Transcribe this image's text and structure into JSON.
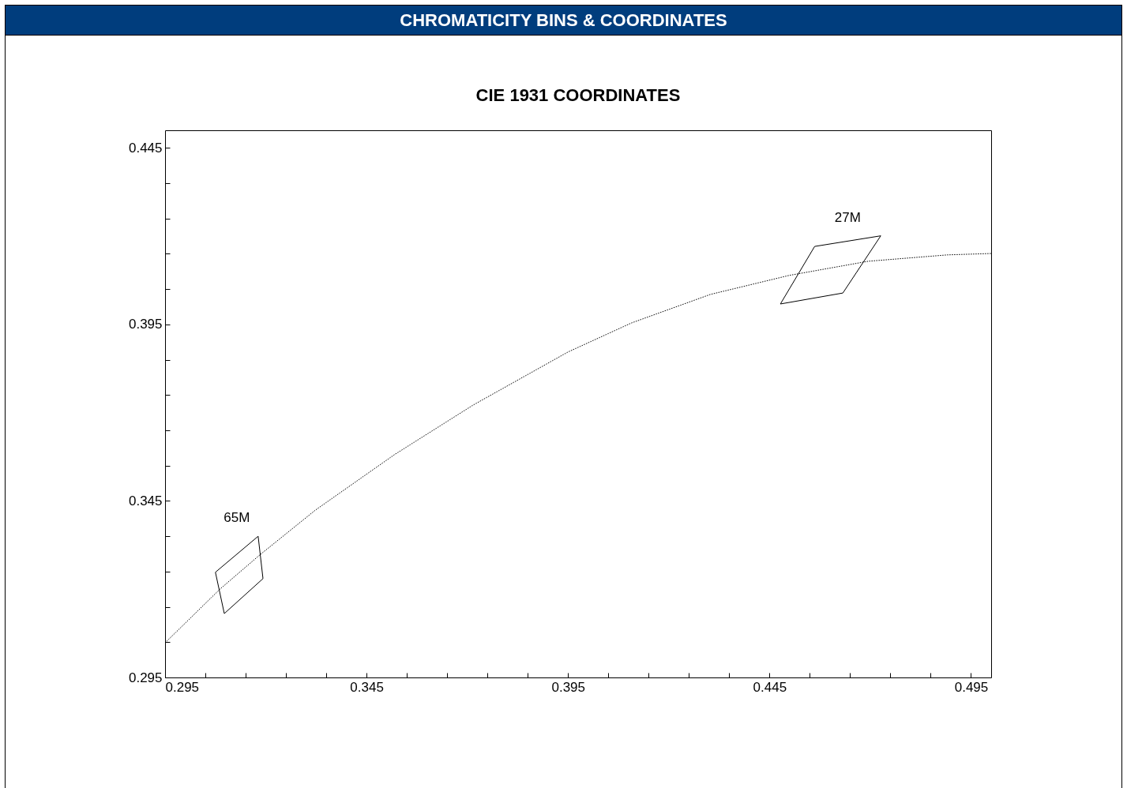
{
  "chart_data": {
    "type": "line",
    "title": "CHROMATICITY BINS & COORDINATES",
    "subtitle": "CIE 1931 COORDINATES",
    "xlim": [
      0.295,
      0.5
    ],
    "ylim": [
      0.295,
      0.45
    ],
    "xticks": [
      0.295,
      {
        "value": 0.305,
        "label": null
      },
      {
        "value": 0.315,
        "label": null
      },
      {
        "value": 0.325,
        "label": null
      },
      {
        "value": 0.335,
        "label": null
      },
      0.345,
      {
        "value": 0.355,
        "label": null
      },
      {
        "value": 0.365,
        "label": null
      },
      {
        "value": 0.375,
        "label": null
      },
      {
        "value": 0.385,
        "label": null
      },
      0.395,
      {
        "value": 0.405,
        "label": null
      },
      {
        "value": 0.415,
        "label": null
      },
      {
        "value": 0.425,
        "label": null
      },
      {
        "value": 0.435,
        "label": null
      },
      0.445,
      {
        "value": 0.455,
        "label": null
      },
      {
        "value": 0.465,
        "label": null
      },
      {
        "value": 0.475,
        "label": null
      },
      {
        "value": 0.485,
        "label": null
      },
      0.495
    ],
    "yticks": [
      0.295,
      {
        "value": 0.305,
        "label": null
      },
      {
        "value": 0.315,
        "label": null
      },
      {
        "value": 0.325,
        "label": null
      },
      {
        "value": 0.335,
        "label": null
      },
      0.345,
      {
        "value": 0.355,
        "label": null
      },
      {
        "value": 0.365,
        "label": null
      },
      {
        "value": 0.375,
        "label": null
      },
      {
        "value": 0.385,
        "label": null
      },
      0.395,
      {
        "value": 0.405,
        "label": null
      },
      {
        "value": 0.415,
        "label": null
      },
      {
        "value": 0.425,
        "label": null
      },
      {
        "value": 0.435,
        "label": null
      },
      0.445
    ],
    "grid": false,
    "legend": false,
    "marker": "none",
    "series": [
      {
        "color": "#000000",
        "line_style": "dotted",
        "x": [
          0.295,
          0.3087,
          0.3185,
          0.3323,
          0.3519,
          0.3715,
          0.395,
          0.4107,
          0.4303,
          0.4499,
          0.4695,
          0.4891,
          0.5
        ],
        "values": [
          0.3048,
          0.3201,
          0.3297,
          0.3424,
          0.3581,
          0.3722,
          0.3872,
          0.3954,
          0.4035,
          0.4089,
          0.4129,
          0.4147,
          0.4151
        ]
      },
      {
        "name": "65M",
        "color": "#000000",
        "line_style": "solid",
        "x": [
          0.3075,
          0.3181,
          0.3193
        ],
        "values": [
          0.3248,
          0.335,
          0.323
        ]
      },
      {
        "color": "#000000",
        "line_style": "solid",
        "x": [
          0.3075,
          0.3097,
          0.3193
        ],
        "values": [
          0.3248,
          0.3131,
          0.323
        ]
      },
      {
        "name": "27M",
        "color": "#000000",
        "line_style": "solid",
        "x": [
          0.4477,
          0.4562,
          0.4726
        ],
        "values": [
          0.4008,
          0.4171,
          0.4201
        ]
      },
      {
        "color": "#000000",
        "line_style": "solid",
        "x": [
          0.4477,
          0.4632,
          0.4726
        ],
        "values": [
          0.4008,
          0.4039,
          0.4201
        ]
      }
    ]
  }
}
